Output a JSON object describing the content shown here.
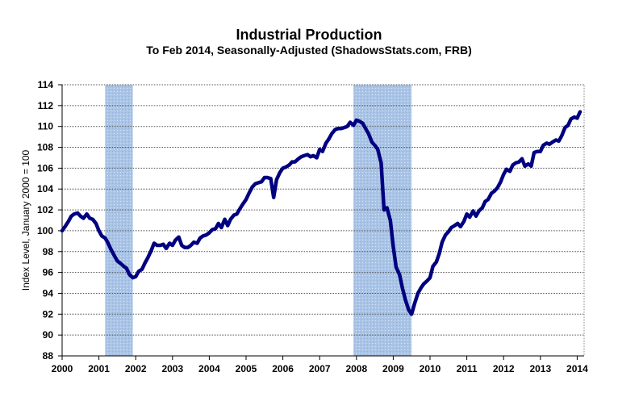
{
  "chart_data": {
    "type": "line",
    "title": "Industrial Production",
    "subtitle": "To Feb 2014, Seasonally-Adjusted (ShadowsStats.com, FRB)",
    "xlabel": "",
    "ylabel": "Index Level, January 2000 = 100",
    "ylim": [
      88,
      114
    ],
    "xlim": [
      2000,
      2014.2
    ],
    "grid": true,
    "y_ticks": [
      "88",
      "90",
      "92",
      "94",
      "96",
      "98",
      "100",
      "102",
      "104",
      "106",
      "108",
      "110",
      "112",
      "114"
    ],
    "x_ticks": [
      "2000",
      "2001",
      "2002",
      "2003",
      "2004",
      "2005",
      "2006",
      "2007",
      "2008",
      "2009",
      "2010",
      "2011",
      "2012",
      "2013",
      "2014"
    ],
    "colors": {
      "line": "#000080",
      "recession": "#aac4e6",
      "grid": "#555555"
    },
    "recessions": [
      {
        "start": 2001.17,
        "end": 2001.92
      },
      {
        "start": 2007.92,
        "end": 2009.5
      }
    ],
    "series": [
      {
        "name": "Industrial Production",
        "x": [
          2000.0,
          2000.08,
          2000.17,
          2000.25,
          2000.33,
          2000.42,
          2000.5,
          2000.58,
          2000.67,
          2000.75,
          2000.83,
          2000.92,
          2001.0,
          2001.08,
          2001.17,
          2001.25,
          2001.33,
          2001.42,
          2001.5,
          2001.58,
          2001.67,
          2001.75,
          2001.83,
          2001.92,
          2002.0,
          2002.08,
          2002.17,
          2002.25,
          2002.33,
          2002.42,
          2002.5,
          2002.58,
          2002.67,
          2002.75,
          2002.83,
          2002.92,
          2003.0,
          2003.08,
          2003.17,
          2003.25,
          2003.33,
          2003.42,
          2003.5,
          2003.58,
          2003.67,
          2003.75,
          2003.83,
          2003.92,
          2004.0,
          2004.08,
          2004.17,
          2004.25,
          2004.33,
          2004.42,
          2004.5,
          2004.58,
          2004.67,
          2004.75,
          2004.83,
          2004.92,
          2005.0,
          2005.08,
          2005.17,
          2005.25,
          2005.33,
          2005.42,
          2005.5,
          2005.58,
          2005.67,
          2005.75,
          2005.83,
          2005.92,
          2006.0,
          2006.08,
          2006.17,
          2006.25,
          2006.33,
          2006.42,
          2006.5,
          2006.58,
          2006.67,
          2006.75,
          2006.83,
          2006.92,
          2007.0,
          2007.08,
          2007.17,
          2007.25,
          2007.33,
          2007.42,
          2007.5,
          2007.58,
          2007.67,
          2007.75,
          2007.83,
          2007.92,
          2008.0,
          2008.08,
          2008.17,
          2008.25,
          2008.33,
          2008.42,
          2008.5,
          2008.58,
          2008.67,
          2008.75,
          2008.83,
          2008.92,
          2009.0,
          2009.08,
          2009.17,
          2009.25,
          2009.33,
          2009.42,
          2009.5,
          2009.58,
          2009.67,
          2009.75,
          2009.83,
          2009.92,
          2010.0,
          2010.08,
          2010.17,
          2010.25,
          2010.33,
          2010.42,
          2010.5,
          2010.58,
          2010.67,
          2010.75,
          2010.83,
          2010.92,
          2011.0,
          2011.08,
          2011.17,
          2011.25,
          2011.33,
          2011.42,
          2011.5,
          2011.58,
          2011.67,
          2011.75,
          2011.83,
          2011.92,
          2012.0,
          2012.08,
          2012.17,
          2012.25,
          2012.33,
          2012.42,
          2012.5,
          2012.58,
          2012.67,
          2012.75,
          2012.83,
          2012.92,
          2013.0,
          2013.08,
          2013.17,
          2013.25,
          2013.33,
          2013.42,
          2013.5,
          2013.58,
          2013.67,
          2013.75,
          2013.83,
          2013.92,
          2014.0,
          2014.08
        ],
        "values": [
          100.0,
          100.4,
          100.9,
          101.4,
          101.6,
          101.7,
          101.4,
          101.2,
          101.6,
          101.2,
          101.1,
          100.7,
          100.0,
          99.5,
          99.3,
          98.8,
          98.2,
          97.6,
          97.1,
          96.9,
          96.6,
          96.4,
          95.8,
          95.5,
          95.6,
          96.1,
          96.3,
          96.9,
          97.4,
          98.1,
          98.8,
          98.6,
          98.6,
          98.7,
          98.3,
          98.8,
          98.6,
          99.1,
          99.4,
          98.6,
          98.4,
          98.4,
          98.6,
          98.9,
          98.8,
          99.3,
          99.5,
          99.6,
          99.8,
          100.1,
          100.2,
          100.7,
          100.3,
          101.1,
          100.5,
          101.1,
          101.5,
          101.6,
          102.1,
          102.6,
          103.0,
          103.6,
          104.2,
          104.5,
          104.6,
          104.7,
          105.1,
          105.1,
          105.0,
          103.2,
          104.9,
          105.6,
          106.0,
          106.1,
          106.3,
          106.6,
          106.6,
          106.9,
          107.1,
          107.2,
          107.3,
          107.1,
          107.2,
          107.0,
          107.8,
          107.6,
          108.4,
          108.8,
          109.3,
          109.7,
          109.8,
          109.8,
          109.9,
          110.0,
          110.4,
          110.1,
          110.6,
          110.5,
          110.3,
          109.8,
          109.3,
          108.5,
          108.2,
          107.8,
          106.5,
          102.0,
          102.2,
          101.0,
          98.5,
          96.5,
          95.8,
          94.5,
          93.4,
          92.4,
          92.0,
          93.0,
          94.0,
          94.5,
          94.9,
          95.2,
          95.5,
          96.6,
          97.0,
          97.8,
          98.9,
          99.6,
          99.9,
          100.3,
          100.5,
          100.7,
          100.4,
          100.9,
          101.6,
          101.3,
          101.9,
          101.4,
          101.9,
          102.2,
          102.8,
          103.0,
          103.6,
          103.8,
          104.1,
          104.7,
          105.4,
          105.9,
          105.7,
          106.3,
          106.5,
          106.6,
          106.9,
          106.2,
          106.4,
          106.2,
          107.5,
          107.6,
          107.6,
          108.2,
          108.4,
          108.3,
          108.5,
          108.7,
          108.6,
          109.1,
          109.9,
          110.1,
          110.7,
          110.9,
          110.8,
          111.4
        ]
      }
    ]
  }
}
